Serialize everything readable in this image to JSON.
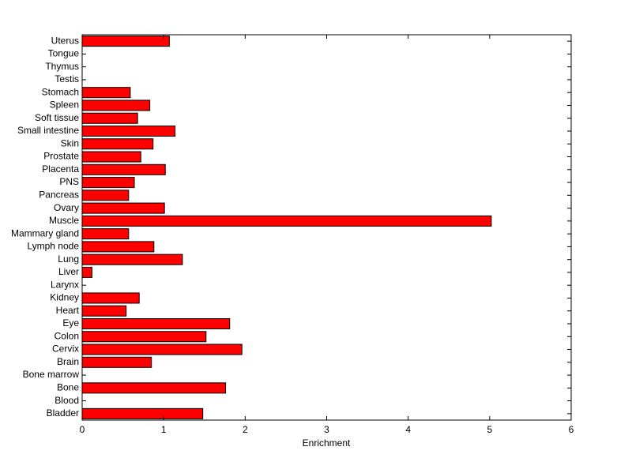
{
  "chart_data": {
    "type": "barh",
    "xlabel": "Enrichment",
    "categories": [
      "Bladder",
      "Blood",
      "Bone",
      "Bone marrow",
      "Brain",
      "Cervix",
      "Colon",
      "Eye",
      "Heart",
      "Kidney",
      "Larynx",
      "Liver",
      "Lung",
      "Lymph node",
      "Mammary gland",
      "Muscle",
      "Ovary",
      "Pancreas",
      "PNS",
      "Placenta",
      "Prostate",
      "Skin",
      "Small intestine",
      "Soft tissue",
      "Spleen",
      "Stomach",
      "Testis",
      "Thymus",
      "Tongue",
      "Uterus"
    ],
    "values": [
      1.48,
      0,
      1.76,
      0,
      0.85,
      1.96,
      1.52,
      1.81,
      0.54,
      0.7,
      0,
      0.12,
      1.23,
      0.88,
      0.57,
      5.02,
      1.01,
      0.57,
      0.64,
      1.02,
      0.72,
      0.87,
      1.14,
      0.68,
      0.83,
      0.59,
      0,
      0,
      0,
      1.07
    ],
    "color": "#ff0000",
    "xlim": [
      0,
      6
    ],
    "xticks": [
      0,
      1,
      2,
      3,
      4,
      5,
      6
    ]
  }
}
